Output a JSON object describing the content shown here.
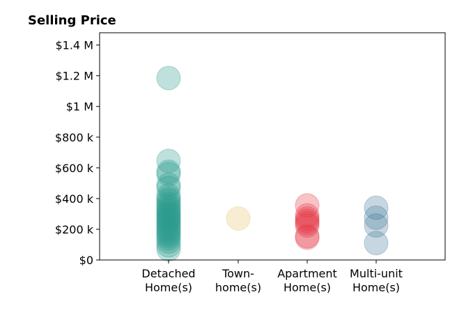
{
  "chart_data": {
    "type": "scatter",
    "title": "Selling Price",
    "xlabel": "",
    "ylabel": "",
    "ylim": [
      0,
      1480000
    ],
    "grid": false,
    "legend": "none",
    "yticks": [
      {
        "value": 0,
        "label": "$0"
      },
      {
        "value": 200000,
        "label": "$200 k"
      },
      {
        "value": 400000,
        "label": "$400 k"
      },
      {
        "value": 600000,
        "label": "$600 k"
      },
      {
        "value": 800000,
        "label": "$800 k"
      },
      {
        "value": 1000000,
        "label": "$1 M"
      },
      {
        "value": 1200000,
        "label": "$1.2 M"
      },
      {
        "value": 1400000,
        "label": "$1.4 M"
      }
    ],
    "categories": [
      {
        "line1": "Detached",
        "line2": "Home(s)"
      },
      {
        "line1": "Town-",
        "line2": "home(s)"
      },
      {
        "line1": "Apartment",
        "line2": "Home(s)"
      },
      {
        "line1": "Multi-unit",
        "line2": "Home(s)"
      }
    ],
    "series": [
      {
        "color": "#2a9d8f",
        "values": [
          1185000,
          645000,
          575000,
          560000,
          490000,
          470000,
          420000,
          400000,
          385000,
          365000,
          350000,
          335000,
          320000,
          305000,
          295000,
          280000,
          270000,
          255000,
          245000,
          230000,
          215000,
          200000,
          185000,
          170000,
          155000,
          140000,
          120000,
          95000,
          70000
        ]
      },
      {
        "color": "#e9c46a",
        "values": [
          270000
        ]
      },
      {
        "color": "#e63946",
        "values": [
          355000,
          290000,
          270000,
          255000,
          240000,
          225000,
          155000,
          145000
        ]
      },
      {
        "color": "#457b9d",
        "values": [
          340000,
          275000,
          225000,
          110000
        ]
      }
    ]
  }
}
